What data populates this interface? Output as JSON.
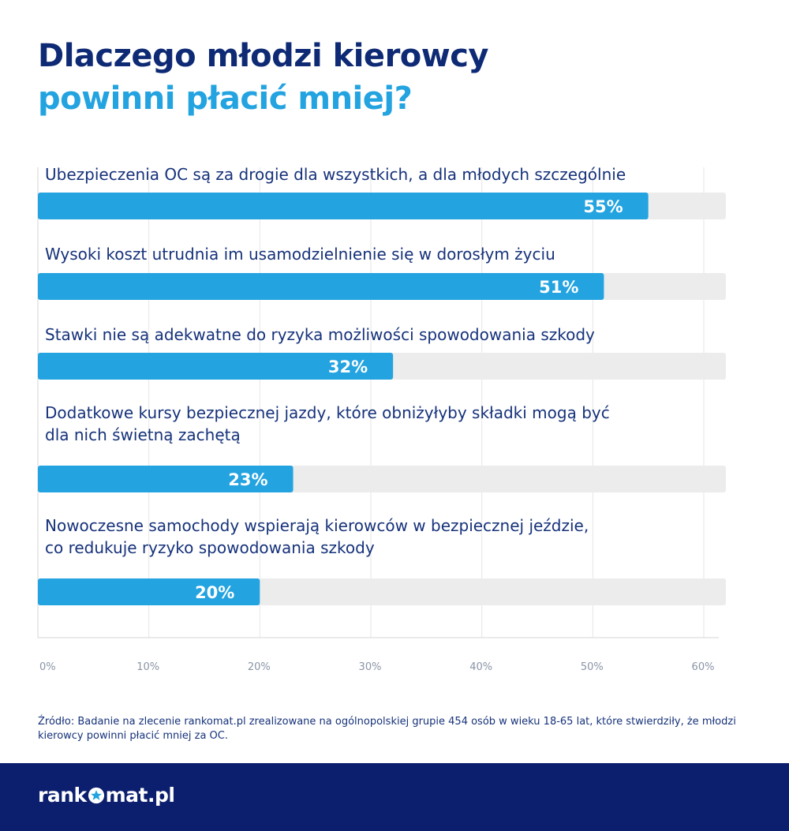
{
  "title_line1": "Dlaczego młodzi kierowcy",
  "title_line2": "powinni płacić mniej?",
  "source": "Źródło: Badanie na zlecenie rankomat.pl zrealizowane na ogólnopolskiej grupie 454 osób w wieku 18-65 lat, które stwierdziły, że młodzi kierowcy powinni płacić mniej za OC.",
  "logo": {
    "text_before": "rank",
    "text_after": "mat.pl",
    "icon": "star-icon"
  },
  "colors": {
    "bar": "#23a3e0",
    "track": "#ececec",
    "title_dark": "#0e2a74",
    "title_accent": "#23a3e0",
    "footer": "#0c1f6e"
  },
  "chart_data": {
    "type": "bar",
    "orientation": "horizontal",
    "categories": [
      [
        "Ubezpieczenia OC są za drogie dla wszystkich, a dla młodych szczególnie"
      ],
      [
        "Wysoki koszt utrudnia im usamodzielnienie się w dorosłym życiu"
      ],
      [
        "Stawki nie są adekwatne do ryzyka możliwości spowodowania szkody"
      ],
      [
        "Dodatkowe kursy bezpiecznej jazdy, które obniżyłyby składki mogą być",
        "dla nich świetną zachętą"
      ],
      [
        "Nowoczesne samochody wspierają kierowców w bezpiecznej jeździe,",
        "co redukuje ryzyko spowodowania szkody"
      ]
    ],
    "values": [
      55,
      51,
      32,
      23,
      20
    ],
    "value_labels": [
      "55%",
      "51%",
      "32%",
      "23%",
      "20%"
    ],
    "xlim": [
      0,
      62
    ],
    "ticks": [
      0,
      10,
      20,
      30,
      40,
      50,
      60
    ],
    "tick_labels": [
      "0%",
      "10%",
      "20%",
      "30%",
      "40%",
      "50%",
      "60%"
    ],
    "grid": true
  }
}
